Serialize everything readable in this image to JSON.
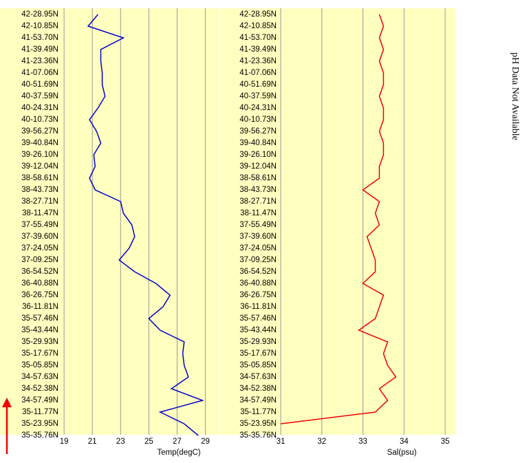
{
  "chart_data": [
    {
      "type": "line",
      "orientation": "horizontal",
      "xlabel": "Temp(degC)",
      "categories": [
        "42-28.95N",
        "42-10.85N",
        "41-53.70N",
        "41-39.49N",
        "41-23.36N",
        "41-07.06N",
        "40-51.69N",
        "40-37.59N",
        "40-24.31N",
        "40-10.73N",
        "39-56.27N",
        "39-40.84N",
        "39-26.10N",
        "39-12.04N",
        "38-58.61N",
        "38-43.73N",
        "38-27.71N",
        "38-11.47N",
        "37-55.49N",
        "37-39.60N",
        "37-24.05N",
        "37-09.25N",
        "36-54.52N",
        "36-40.88N",
        "36-26.75N",
        "36-11.81N",
        "35-57.46N",
        "35-43.44N",
        "35-29.93N",
        "35-17.67N",
        "35-05.85N",
        "34-57.63N",
        "34-52.38N",
        "34-57.49N",
        "35-11.77N",
        "35-23.95N",
        "35-35.76N"
      ],
      "series": [
        {
          "name": "Temp",
          "color": "#0000cc",
          "values": [
            21.4,
            20.7,
            23.2,
            21.6,
            21.6,
            21.7,
            21.7,
            21.9,
            21.4,
            20.8,
            21.3,
            21.6,
            21.1,
            21.2,
            20.8,
            21.2,
            23.0,
            23.2,
            23.8,
            24.0,
            23.6,
            22.9,
            24.0,
            25.5,
            26.5,
            26.0,
            25.0,
            25.8,
            27.5,
            27.4,
            27.5,
            27.8,
            26.6,
            28.8,
            25.8,
            27.5,
            28.5
          ]
        }
      ],
      "xlim": [
        18.75,
        29.95
      ],
      "xticks": [
        19,
        21,
        23,
        25,
        27,
        29
      ],
      "grid": true,
      "background": "#ffffc0"
    },
    {
      "type": "line",
      "orientation": "horizontal",
      "xlabel": "Sal(psu)",
      "categories": [
        "42-28.95N",
        "42-10.85N",
        "41-53.70N",
        "41-39.49N",
        "41-23.36N",
        "41-07.06N",
        "40-51.69N",
        "40-37.59N",
        "40-24.31N",
        "40-10.73N",
        "39-56.27N",
        "39-40.84N",
        "39-26.10N",
        "39-12.04N",
        "38-58.61N",
        "38-43.73N",
        "38-27.71N",
        "38-11.47N",
        "37-55.49N",
        "37-39.60N",
        "37-24.05N",
        "37-09.25N",
        "36-54.52N",
        "36-40.88N",
        "36-26.75N",
        "36-11.81N",
        "35-57.46N",
        "35-43.44N",
        "35-29.93N",
        "35-17.67N",
        "35-05.85N",
        "34-57.63N",
        "34-52.38N",
        "34-57.49N",
        "35-11.77N",
        "35-23.95N",
        "35-35.76N"
      ],
      "series": [
        {
          "name": "Sal",
          "color": "#ee0000",
          "values": [
            33.4,
            33.5,
            33.4,
            33.5,
            33.4,
            33.5,
            33.5,
            33.4,
            33.5,
            33.5,
            33.4,
            33.5,
            33.5,
            33.4,
            33.4,
            33.0,
            33.4,
            33.3,
            33.4,
            33.1,
            33.2,
            33.3,
            33.3,
            33.0,
            33.5,
            33.4,
            33.3,
            32.9,
            33.6,
            33.5,
            33.6,
            33.8,
            33.4,
            33.6,
            33.3,
            31.0,
            null
          ]
        }
      ],
      "xlim": [
        31,
        35.25
      ],
      "xticks": [
        31,
        32,
        33,
        34,
        35
      ],
      "grid": true,
      "background": "#ffffc0"
    }
  ],
  "side_note": "pH Data Not Available"
}
